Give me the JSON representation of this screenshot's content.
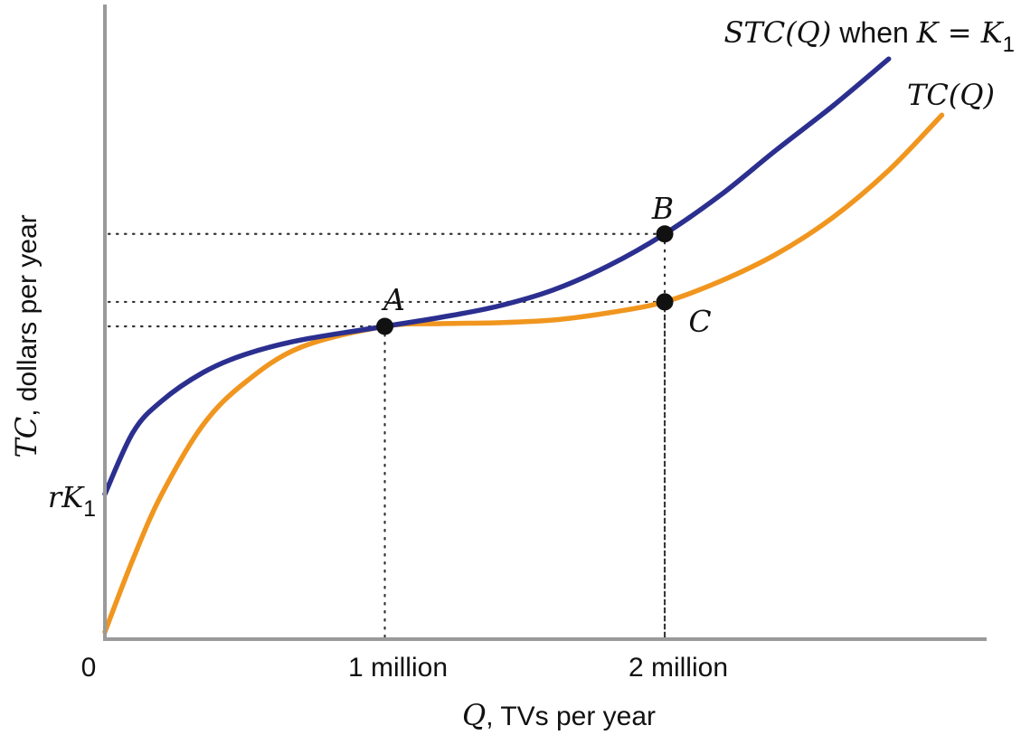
{
  "chart_data": {
    "type": "line",
    "xlabel": {
      "var": "Q",
      "text": ", TVs per year"
    },
    "ylabel": {
      "var": "TC",
      "text": ", dollars per year"
    },
    "x_ticks": [
      {
        "value": 0,
        "label": "0"
      },
      {
        "value": 1,
        "label": "1 million"
      },
      {
        "value": 2,
        "label": "2 million"
      }
    ],
    "xlim": [
      0,
      3.15
    ],
    "ylim": [
      0,
      700
    ],
    "y_annotation": {
      "var": "rK",
      "sub": "1",
      "value": 160
    },
    "series": [
      {
        "id": "stc",
        "label": {
          "main": "STC(Q)",
          "mid": " when ",
          "var": "K = K",
          "sub": "1"
        },
        "color": "#2b2f8f",
        "x": [
          0,
          0.1,
          0.2,
          0.35,
          0.5,
          0.7,
          1.0,
          1.2,
          1.4,
          1.6,
          1.8,
          2.0,
          2.2,
          2.4,
          2.6,
          2.8
        ],
        "y": [
          160,
          228,
          262,
          294,
          314,
          330,
          345,
          355,
          367,
          385,
          412,
          447,
          490,
          540,
          588,
          640
        ]
      },
      {
        "id": "tc",
        "label": {
          "main": "TC(Q)"
        },
        "color": "#f0961f",
        "x": [
          0,
          0.1,
          0.2,
          0.35,
          0.5,
          0.7,
          1.0,
          1.2,
          1.4,
          1.6,
          1.8,
          2.0,
          2.2,
          2.4,
          2.6,
          2.8,
          2.99
        ],
        "y": [
          8,
          88,
          158,
          236,
          283,
          322,
          345,
          348,
          349,
          352,
          360,
          372,
          395,
          425,
          465,
          517,
          578
        ]
      }
    ],
    "points": [
      {
        "label": "A",
        "x": 1.0,
        "y": 345
      },
      {
        "label": "B",
        "x": 2.0,
        "y": 447
      },
      {
        "label": "C",
        "x": 2.0,
        "y": 372
      }
    ]
  }
}
